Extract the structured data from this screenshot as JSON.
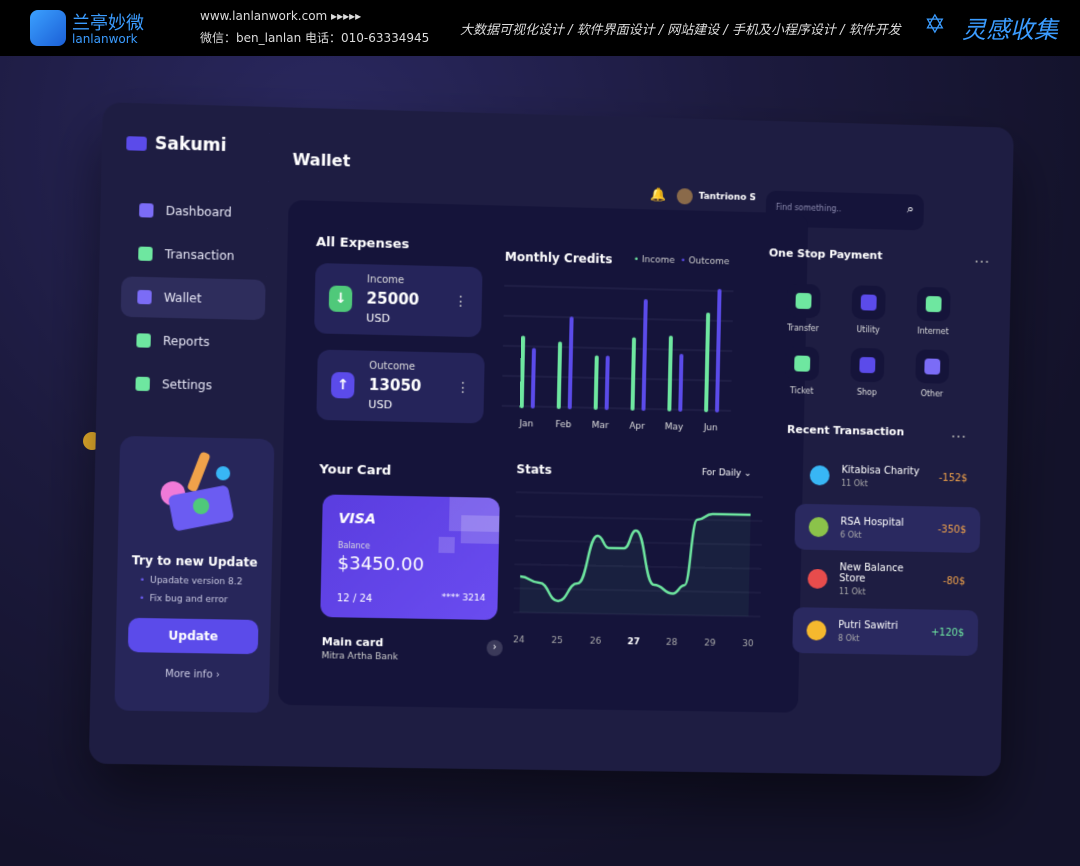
{
  "banner": {
    "brand_cn": "兰亭妙微",
    "brand_en": "lanlanwork",
    "site": "www.lanlanwork.com  ▸▸▸▸▸",
    "contact": "微信：ben_lanlan    电话：010-63334945",
    "services": "大数据可视化设计  /  软件界面设计  /  网站建设  /  手机及小程序设计  /  软件开发",
    "right_brand": "灵感收集"
  },
  "app": {
    "name": "Sakumi",
    "page_title": "Wallet"
  },
  "sidebar": {
    "items": [
      {
        "label": "Dashboard",
        "icon": "dashboard-icon",
        "color": "#7b6cf6"
      },
      {
        "label": "Transaction",
        "icon": "transfer-arrows-icon",
        "color": "#6ee7a0"
      },
      {
        "label": "Wallet",
        "icon": "wallet-icon",
        "color": "#7b6cf6"
      },
      {
        "label": "Reports",
        "icon": "bar-chart-icon",
        "color": "#6ee7a0"
      },
      {
        "label": "Settings",
        "icon": "gear-icon",
        "color": "#6ee7a0"
      }
    ],
    "active": "Wallet",
    "update": {
      "title": "Try to new Update",
      "bullets": [
        "Upadate version 8.2",
        "Fix bug and error"
      ],
      "button": "Update",
      "more": "More info"
    }
  },
  "header": {
    "user": "Tantriono S",
    "search_placeholder": "Find something.."
  },
  "expenses": {
    "title": "All Expenses",
    "income": {
      "label": "Income",
      "value": "25000",
      "unit": "USD"
    },
    "outcome": {
      "label": "Outcome",
      "value": "13050",
      "unit": "USD"
    }
  },
  "chart_data": [
    {
      "type": "bar",
      "title": "Monthly Credits",
      "categories": [
        "Jan",
        "Feb",
        "Mar",
        "Apr",
        "May",
        "Jun"
      ],
      "series": [
        {
          "name": "Income",
          "color": "#6ee7a0",
          "values": [
            57,
            53,
            42,
            58,
            60,
            80
          ]
        },
        {
          "name": "Outcome",
          "color": "#5b4bea",
          "values": [
            47,
            74,
            42,
            90,
            45,
            100
          ]
        }
      ],
      "ylim": [
        0,
        100
      ],
      "grid": true,
      "legend": "top-right"
    },
    {
      "type": "line",
      "title": "Stats",
      "filter": "For Daily",
      "x": [
        24,
        24.5,
        25,
        25.5,
        26,
        26.3,
        26.7,
        27,
        27.5,
        28,
        28.3,
        28.6,
        29,
        29.5,
        30
      ],
      "y": [
        30,
        25,
        10,
        25,
        65,
        55,
        55,
        70,
        25,
        18,
        25,
        80,
        85,
        85,
        85
      ],
      "xticks": [
        "24",
        "25",
        "26",
        "27",
        "28",
        "29",
        "30"
      ],
      "highlight": "27",
      "ylim": [
        0,
        100
      ],
      "color": "#6ee7a0"
    }
  ],
  "your_card": {
    "title": "Your Card",
    "brand": "VISA",
    "balance_label": "Balance",
    "balance": "$3450.00",
    "expiry": "12 / 24",
    "number": "**** 3214",
    "name": "Main card",
    "bank": "Mitra Artha Bank"
  },
  "payment": {
    "title": "One Stop Payment",
    "items": [
      {
        "label": "Transfer",
        "color": "#6ee7a0"
      },
      {
        "label": "Utility",
        "color": "#5b4bea"
      },
      {
        "label": "Internet",
        "color": "#6ee7a0"
      },
      {
        "label": "Ticket",
        "color": "#6ee7a0"
      },
      {
        "label": "Shop",
        "color": "#5b4bea"
      },
      {
        "label": "Other",
        "color": "#7b6cf6"
      }
    ]
  },
  "transactions": {
    "title": "Recent Transaction",
    "items": [
      {
        "name": "Kitabisa Charity",
        "date": "11 Okt",
        "amount": "-152$",
        "color": "#38b6f5",
        "amount_color": "#f0a24a"
      },
      {
        "name": "RSA Hospital",
        "date": "6 Okt",
        "amount": "-350$",
        "color": "#8bc34a",
        "amount_color": "#f0a24a"
      },
      {
        "name": "New Balance Store",
        "date": "11 Okt",
        "amount": "-80$",
        "color": "#e74c4c",
        "amount_color": "#f0a24a"
      },
      {
        "name": "Putri Sawitri",
        "date": "8 Okt",
        "amount": "+120$",
        "color": "#f5b82e",
        "amount_color": "#6ee7a0"
      }
    ]
  }
}
